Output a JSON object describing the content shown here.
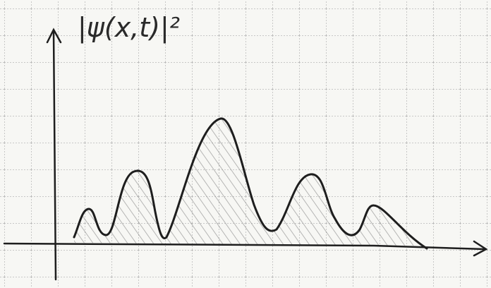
{
  "label": "|ψ(x,t)|²"
}
